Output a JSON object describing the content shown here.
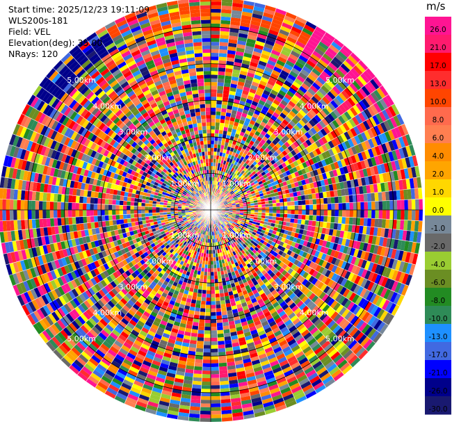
{
  "header": {
    "start_time": "Start time: 2025/12/23 19:11:09",
    "station": "WLS200s-181",
    "field": "Field: VEL",
    "elevation": "Elevation(deg): 35.00",
    "nrays": "NRays: 120"
  },
  "chart_data": {
    "type": "heatmap",
    "subtype": "polar-ppi",
    "field": "VEL",
    "n_rays": 120,
    "range_rings_km": [
      1,
      2,
      3,
      4,
      5
    ],
    "range_labels": [
      "1.00km",
      "2.00km",
      "3.00km",
      "4.00km",
      "5.00km"
    ],
    "max_range_km": 5.8,
    "colorbar": {
      "unit": "m/s",
      "ticks": [
        "26.0",
        "21.0",
        "17.0",
        "13.0",
        "10.0",
        "8.0",
        "6.0",
        "4.0",
        "2.0",
        "1.0",
        "0.0",
        "-1.0",
        "-2.0",
        "-4.0",
        "-6.0",
        "-8.0",
        "-10.0",
        "-13.0",
        "-17.0",
        "-21.0",
        "-26.0",
        "-30.0"
      ],
      "colors": [
        "#ff1493",
        "#ff1a6e",
        "#ff0000",
        "#ff2d2d",
        "#ff4500",
        "#ff6a4d",
        "#ff7f50",
        "#ff8c00",
        "#ffa500",
        "#ffd700",
        "#ffff00",
        "#778899",
        "#696969",
        "#9acd32",
        "#6b8e23",
        "#228b22",
        "#2e8b57",
        "#1e90ff",
        "#4169e1",
        "#0000ff",
        "#00008b",
        "#191970"
      ]
    }
  }
}
